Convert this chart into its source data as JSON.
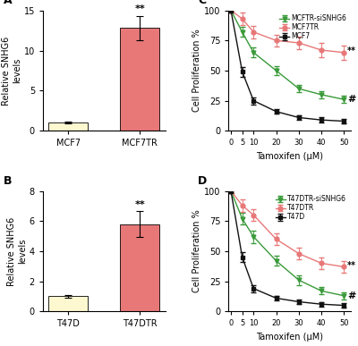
{
  "panel_A": {
    "categories": [
      "MCF7",
      "MCF7TR"
    ],
    "values": [
      1.0,
      12.8
    ],
    "errors": [
      0.1,
      1.5
    ],
    "bar_colors": [
      "#fdf8d0",
      "#e87878"
    ],
    "ylabel": "Relative SNHG6\nlevels",
    "ylim": [
      0,
      15
    ],
    "yticks": [
      0,
      5,
      10,
      15
    ],
    "sig_label": "**",
    "label": "A"
  },
  "panel_B": {
    "categories": [
      "T47D",
      "T47DTR"
    ],
    "values": [
      1.0,
      5.8
    ],
    "errors": [
      0.1,
      0.85
    ],
    "bar_colors": [
      "#fdf8d0",
      "#e87878"
    ],
    "ylabel": "Relative SNHG6\nlevels",
    "ylim": [
      0,
      8
    ],
    "yticks": [
      0,
      2,
      4,
      6,
      8
    ],
    "sig_label": "**",
    "label": "B"
  },
  "panel_C": {
    "x": [
      0,
      5,
      10,
      20,
      30,
      40,
      50
    ],
    "MCFTR_siSNHG6": [
      100,
      82,
      65,
      50,
      35,
      30,
      26
    ],
    "MCF7TR": [
      100,
      93,
      82,
      75,
      73,
      67,
      65
    ],
    "MCF7": [
      100,
      49,
      25,
      16,
      11,
      9,
      8
    ],
    "MCFTR_siSNHG6_err": [
      2,
      4,
      4,
      4,
      3,
      3,
      3
    ],
    "MCF7TR_err": [
      2,
      5,
      5,
      5,
      5,
      6,
      6
    ],
    "MCF7_err": [
      2,
      4,
      3,
      2,
      2,
      2,
      2
    ],
    "colors": {
      "MCFTR_siSNHG6": "#3a9a3a",
      "MCF7TR": "#e87878",
      "MCF7": "#111111"
    },
    "xlabel": "Tamoxifen (μM)",
    "ylabel": "Cell Proliferation %",
    "ylim": [
      0,
      100
    ],
    "yticks": [
      0,
      25,
      50,
      75,
      100
    ],
    "sig_label": "**",
    "hash_label": "#",
    "legend_order": [
      "MCFTR-siSNHG6",
      "MCF7TR",
      "MCF7"
    ],
    "label": "C"
  },
  "panel_D": {
    "x": [
      0,
      5,
      10,
      20,
      30,
      40,
      50
    ],
    "T47DTR_siSNHG6": [
      100,
      77,
      62,
      42,
      26,
      17,
      13
    ],
    "T47DTR": [
      100,
      88,
      80,
      60,
      48,
      40,
      37
    ],
    "T47D": [
      100,
      45,
      19,
      11,
      8,
      6,
      5
    ],
    "T47DTR_siSNHG6_err": [
      2,
      5,
      5,
      4,
      4,
      3,
      3
    ],
    "T47DTR_err": [
      2,
      5,
      5,
      5,
      5,
      5,
      5
    ],
    "T47D_err": [
      2,
      4,
      3,
      2,
      2,
      2,
      2
    ],
    "colors": {
      "T47DTR_siSNHG6": "#3a9a3a",
      "T47DTR": "#e87878",
      "T47D": "#111111"
    },
    "xlabel": "Tamoxifen (μM)",
    "ylabel": "Cell Proliferation %",
    "ylim": [
      0,
      100
    ],
    "yticks": [
      0,
      25,
      50,
      75,
      100
    ],
    "sig_label": "**",
    "hash_label": "#",
    "legend_order": [
      "T47DTR-siSNHG6",
      "T47DTR",
      "T47D"
    ],
    "label": "D"
  }
}
